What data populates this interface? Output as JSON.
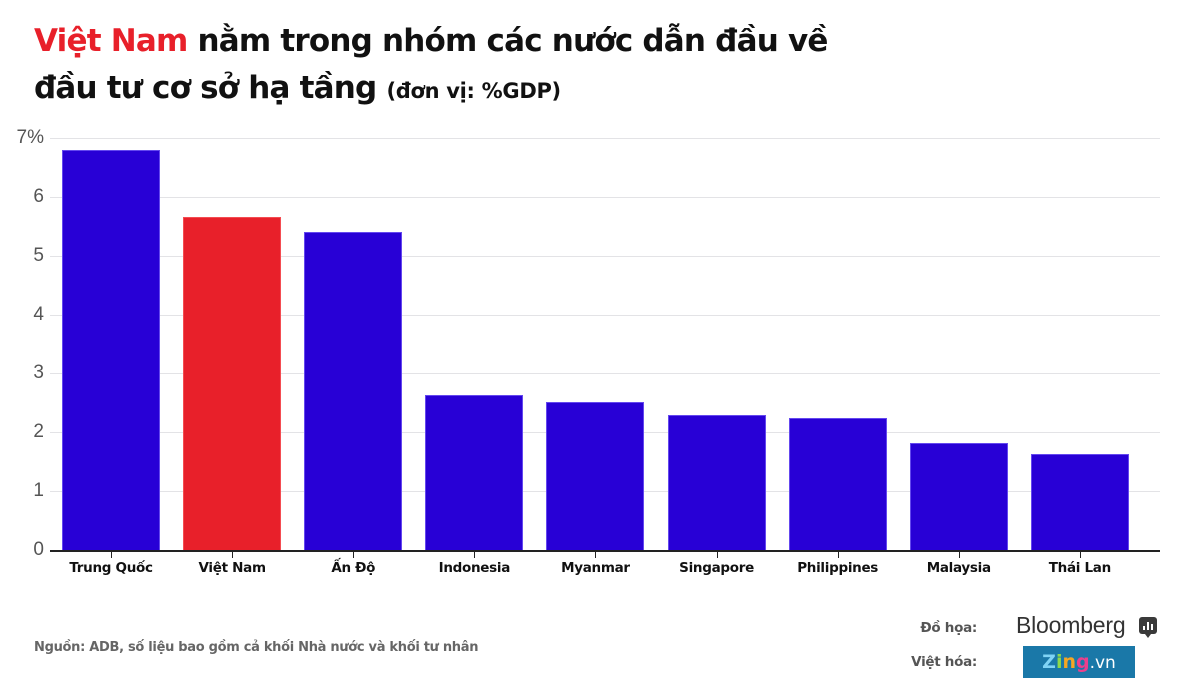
{
  "title": {
    "highlight": "Việt Nam",
    "line1_rest": " nằm trong nhóm các nước dẫn đầu về",
    "line2": "đầu tư cơ sở hạ tầng ",
    "unit": "(đơn vị: %GDP)"
  },
  "colors": {
    "bar_default": "#2800d6",
    "bar_highlight": "#e8202a",
    "title_highlight": "#e8202a",
    "gridline": "#e3e3e6",
    "zing_bg": "#1a78a8"
  },
  "chart_data": {
    "type": "bar",
    "title": "Việt Nam nằm trong nhóm các nước dẫn đầu về đầu tư cơ sở hạ tầng (đơn vị: %GDP)",
    "categories": [
      "Trung Quốc",
      "Việt Nam",
      "Ấn Độ",
      "Indonesia",
      "Myanmar",
      "Singapore",
      "Philippines",
      "Malaysia",
      "Thái Lan"
    ],
    "values": [
      6.8,
      5.65,
      5.4,
      2.63,
      2.51,
      2.29,
      2.24,
      1.82,
      1.63
    ],
    "highlight_category": "Việt Nam",
    "xlabel": "",
    "ylabel": "%GDP",
    "ylim": [
      0,
      7
    ],
    "yticks": [
      "0",
      "1",
      "2",
      "3",
      "4",
      "5",
      "6",
      "7%"
    ],
    "grid": true,
    "legend": null
  },
  "footer": {
    "source": "Nguồn: ADB, số liệu bao gồm cả khối Nhà nước và khối tư nhân",
    "graphics_label": "Đồ họa:",
    "graphics_brand": "Bloomberg",
    "localized_label": "Việt hóa:",
    "zing_letters": [
      {
        "ch": "Z",
        "color": "#7fd3f5"
      },
      {
        "ch": "i",
        "color": "#8ed94a"
      },
      {
        "ch": "n",
        "color": "#f5a623"
      },
      {
        "ch": "g",
        "color": "#ec3f8c"
      }
    ],
    "zing_suffix": ".vn"
  }
}
